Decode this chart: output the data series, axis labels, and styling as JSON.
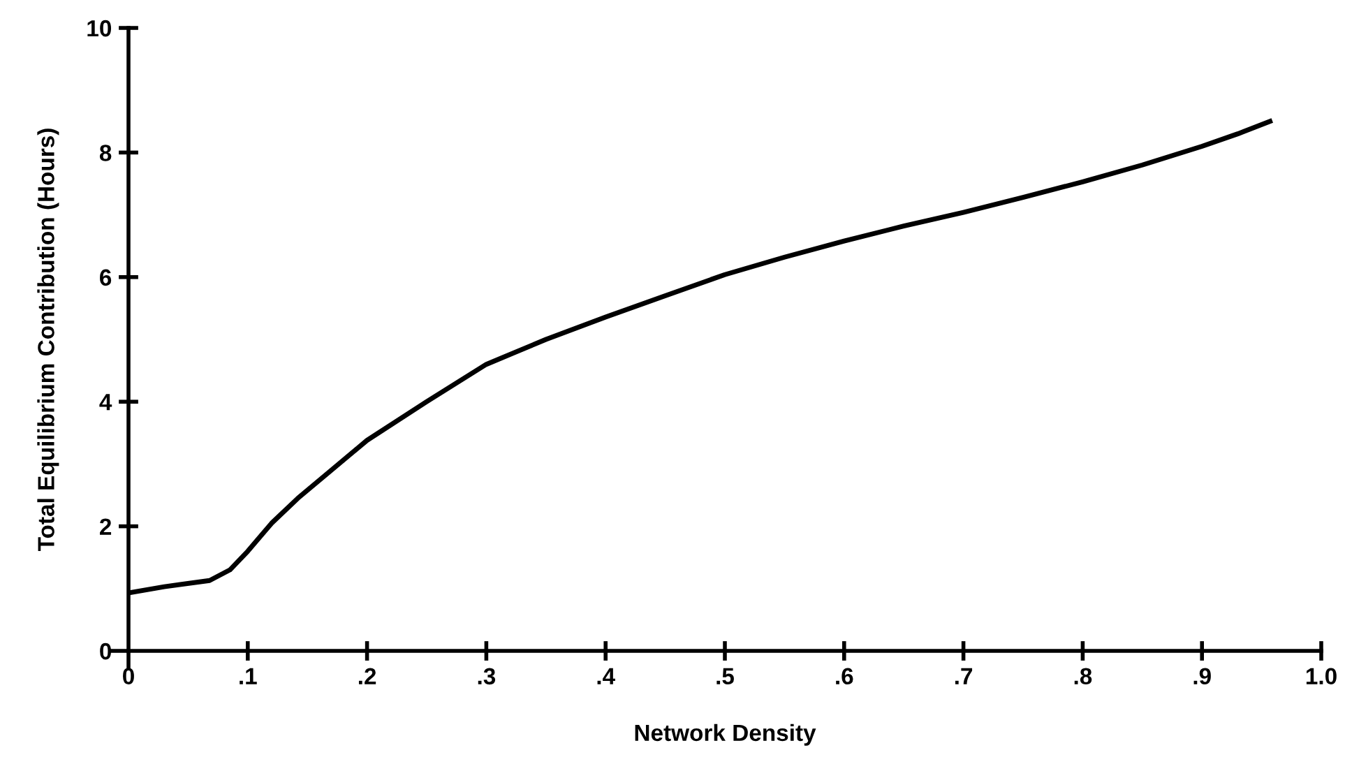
{
  "chart_data": {
    "type": "line",
    "xlabel": "Network Density",
    "ylabel": "Total Equilibrium Contribution (Hours)",
    "x": [
      0,
      0.03,
      0.068,
      0.085,
      0.1,
      0.12,
      0.142,
      0.17,
      0.2,
      0.25,
      0.3,
      0.35,
      0.4,
      0.45,
      0.5,
      0.55,
      0.6,
      0.65,
      0.7,
      0.75,
      0.8,
      0.85,
      0.9,
      0.93,
      0.957
    ],
    "series": [
      {
        "color": "#000000",
        "values": [
          0.93,
          1.03,
          1.13,
          1.3,
          1.6,
          2.05,
          2.45,
          2.9,
          3.38,
          4.0,
          4.6,
          5.0,
          5.36,
          5.7,
          6.04,
          6.32,
          6.58,
          6.82,
          7.04,
          7.28,
          7.53,
          7.8,
          8.1,
          8.3,
          8.5
        ]
      }
    ],
    "xlim": [
      0,
      1.0
    ],
    "ylim": [
      0,
      10
    ],
    "xticks": [
      0,
      {
        "value": 0.1,
        "label": ".1"
      },
      {
        "value": 0.2,
        "label": ".2"
      },
      {
        "value": 0.3,
        "label": ".3"
      },
      {
        "value": 0.4,
        "label": ".4"
      },
      {
        "value": 0.5,
        "label": ".5"
      },
      {
        "value": 0.6,
        "label": ".6"
      },
      {
        "value": 0.7,
        "label": ".7"
      },
      {
        "value": 0.8,
        "label": ".8"
      },
      {
        "value": 0.9,
        "label": ".9"
      },
      {
        "value": 1.0,
        "label": "1.0"
      }
    ],
    "yticks": [
      0,
      2,
      4,
      6,
      8,
      10
    ],
    "grid": false,
    "legend": false,
    "marker": "none",
    "line_style": "solid"
  }
}
